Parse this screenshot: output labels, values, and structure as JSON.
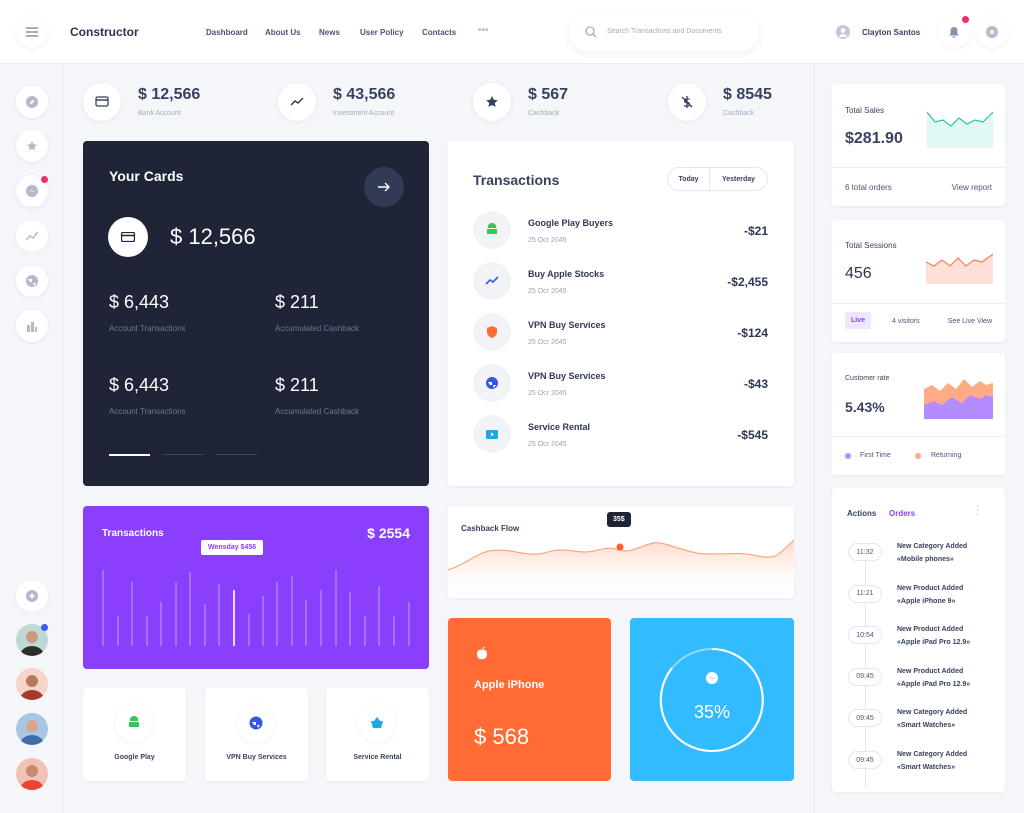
{
  "header": {
    "brand": "Constructor",
    "nav": [
      "Dashboard",
      "About Us",
      "News",
      "User Policy",
      "Contacts"
    ],
    "search_placeholder": "Search Transactions and Documents",
    "user": "Clayton Santos"
  },
  "stats": [
    {
      "value": "$ 12,566",
      "label": "Bank Account"
    },
    {
      "value": "$ 43,566",
      "label": "Investment Account"
    },
    {
      "value": "$ 567",
      "label": "Cashback"
    },
    {
      "value": "$ 8545",
      "label": "Cashback"
    }
  ],
  "cards": {
    "title": "Your Cards",
    "balance": "$ 12,566",
    "items": [
      {
        "value": "$ 6,443",
        "label": "Account Transactions"
      },
      {
        "value": "$ 211",
        "label": "Accumulated Cashback"
      },
      {
        "value": "$ 6,443",
        "label": "Account Transactions"
      },
      {
        "value": "$ 211",
        "label": "Accumulated Cashback"
      }
    ]
  },
  "transactions": {
    "title": "Transactions",
    "tabs": [
      "Today",
      "Yesterday"
    ],
    "rows": [
      {
        "name": "Google Play Buyers",
        "date": "25 Ocr 2045",
        "amount": "-$21"
      },
      {
        "name": "Buy Apple Stocks",
        "date": "25 Ocr 2045",
        "amount": "-$2,455"
      },
      {
        "name": "VPN Buy Services",
        "date": "25 Ocr 2045",
        "amount": "-$124"
      },
      {
        "name": "VPN Buy Services",
        "date": "25 Ocr 2045",
        "amount": "-$43"
      },
      {
        "name": "Service Rental",
        "date": "25 Ocr 2045",
        "amount": "-$545"
      }
    ]
  },
  "transactions_chart": {
    "title": "Transactions",
    "total": "$ 2554",
    "tooltip": "Wensday $456"
  },
  "cashback": {
    "title": "Cashback Flow",
    "tooltip": "35$"
  },
  "apps": [
    "Google Play",
    "VPN Buy Services",
    "Service Rental"
  ],
  "apple": {
    "title": "Apple iPhone",
    "value": "$ 568"
  },
  "messenger": {
    "value": "35%"
  },
  "total_sales": {
    "title": "Total Sales",
    "value": "$281.90",
    "orders": "6 total orders",
    "link": "View report"
  },
  "sessions": {
    "title": "Total Sessions",
    "value": "456",
    "badge": "Live",
    "visitors": "4 visitors",
    "link": "See Live View"
  },
  "customer_rate": {
    "title": "Customer rate",
    "value": "5.43%",
    "legend": [
      "First Time",
      "Returning"
    ]
  },
  "activity": {
    "tabs": [
      "Actions",
      "Orders"
    ],
    "items": [
      {
        "time": "11:32",
        "title": "New Category Added",
        "detail": "«Mobile phones»"
      },
      {
        "time": "11:21",
        "title": "New Product Added",
        "detail": "«Apple iPhone 9»"
      },
      {
        "time": "10:54",
        "title": "New Product Added",
        "detail": "«Apple iPad Pro 12.9»"
      },
      {
        "time": "09:45",
        "title": "New Product Added",
        "detail": "«Apple iPad Pro 12.9»"
      },
      {
        "time": "09:45",
        "title": "New Category Added",
        "detail": "«Smart Watches»"
      },
      {
        "time": "09:45",
        "title": "New Category Added",
        "detail": "«Smart Watches»"
      }
    ]
  }
}
